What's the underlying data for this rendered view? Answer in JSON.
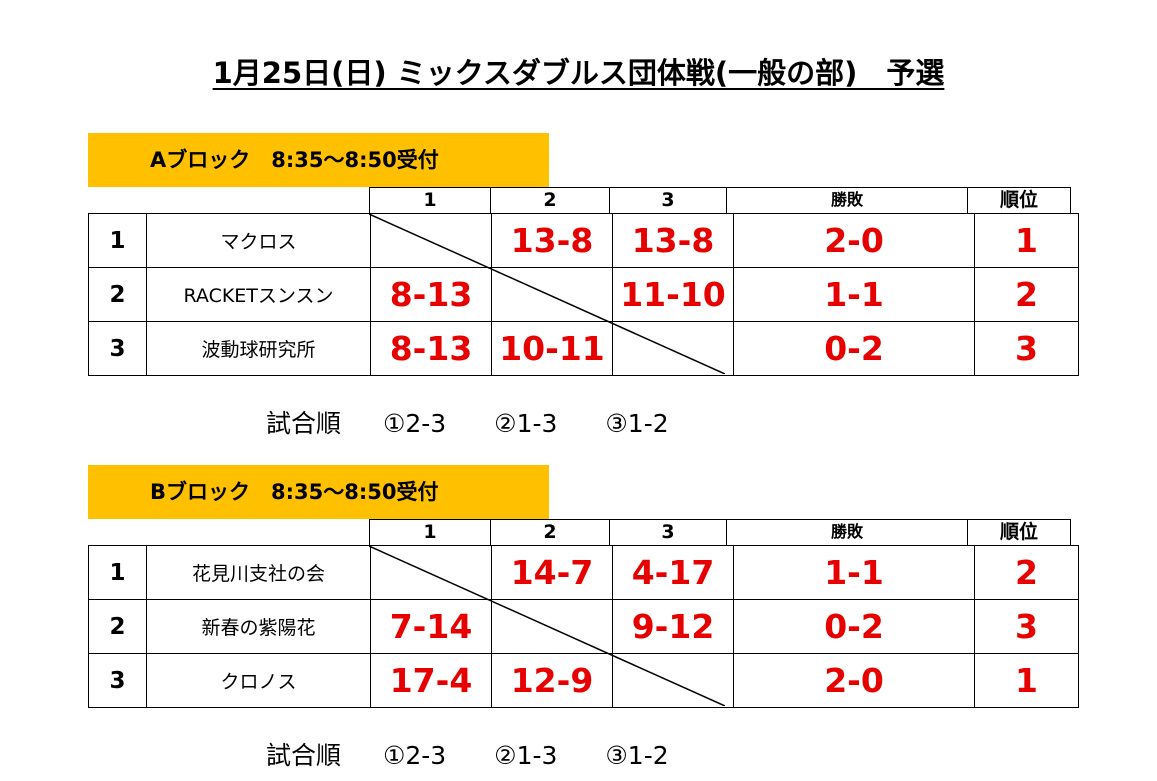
{
  "title": "1月25日(日) ミックスダブルス団体戦(一般の部)　予選",
  "blocks": [
    {
      "label": "Aブロック　8:35～8:50受付",
      "headers": {
        "c1": "1",
        "c2": "2",
        "c3": "3",
        "wl": "勝敗",
        "rank": "順位"
      },
      "rows": [
        {
          "no": "1",
          "team": "マクロス",
          "s1": "",
          "s2": "13-8",
          "s3": "13-8",
          "wl": "2-0",
          "rank": "1"
        },
        {
          "no": "2",
          "team": "RACKETスンスン",
          "s1": "8-13",
          "s2": "",
          "s3": "11-10",
          "wl": "1-1",
          "rank": "2"
        },
        {
          "no": "3",
          "team": "波動球研究所",
          "s1": "8-13",
          "s2": "10-11",
          "s3": "",
          "wl": "0-2",
          "rank": "3"
        }
      ],
      "order": {
        "label": "試合順",
        "items": [
          "①2-3",
          "②1-3",
          "③1-2"
        ]
      }
    },
    {
      "label": "Bブロック　8:35～8:50受付",
      "headers": {
        "c1": "1",
        "c2": "2",
        "c3": "3",
        "wl": "勝敗",
        "rank": "順位"
      },
      "rows": [
        {
          "no": "1",
          "team": "花見川支社の会",
          "s1": "",
          "s2": "14-7",
          "s3": "4-17",
          "wl": "1-1",
          "rank": "2"
        },
        {
          "no": "2",
          "team": "新春の紫陽花",
          "s1": "7-14",
          "s2": "",
          "s3": "9-12",
          "wl": "0-2",
          "rank": "3"
        },
        {
          "no": "3",
          "team": "クロノス",
          "s1": "17-4",
          "s2": "12-9",
          "s3": "",
          "wl": "2-0",
          "rank": "1"
        }
      ],
      "order": {
        "label": "試合順",
        "items": [
          "①2-3",
          "②1-3",
          "③1-2"
        ]
      }
    }
  ],
  "colors": {
    "block_label_bg": "#ffc000",
    "score_red": "#e60000"
  }
}
